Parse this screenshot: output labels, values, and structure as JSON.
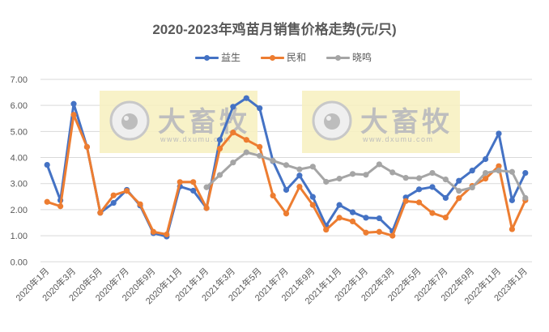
{
  "chart_data": {
    "type": "line",
    "title": "2020-2023年鸡苗月销售价格走势(元/只)",
    "xlabel": "",
    "ylabel": "",
    "ylim": [
      0,
      7
    ],
    "yticks": [
      "0.00",
      "1.00",
      "2.00",
      "3.00",
      "4.00",
      "5.00",
      "6.00",
      "7.00"
    ],
    "grid": true,
    "legend_position": "top",
    "categories": [
      "2020年1月",
      "2020年2月",
      "2020年3月",
      "2020年4月",
      "2020年5月",
      "2020年6月",
      "2020年7月",
      "2020年8月",
      "2020年9月",
      "2020年10月",
      "2020年11月",
      "2020年12月",
      "2021年1月",
      "2021年2月",
      "2021年3月",
      "2021年4月",
      "2021年5月",
      "2021年6月",
      "2021年7月",
      "2021年8月",
      "2021年9月",
      "2021年10月",
      "2021年11月",
      "2021年12月",
      "2022年1月",
      "2022年2月",
      "2022年3月",
      "2022年4月",
      "2022年5月",
      "2022年6月",
      "2022年7月",
      "2022年8月",
      "2022年9月",
      "2022年10月",
      "2022年11月",
      "2022年12月",
      "2023年1月"
    ],
    "xtick_labels": [
      "2020年1月",
      "2020年3月",
      "2020年5月",
      "2020年7月",
      "2020年9月",
      "2020年11月",
      "2021年1月",
      "2021年3月",
      "2021年5月",
      "2021年7月",
      "2021年9月",
      "2021年11月",
      "2022年1月",
      "2022年3月",
      "2022年5月",
      "2022年7月",
      "2022年9月",
      "2022年11月",
      "2023年1月"
    ],
    "series": [
      {
        "name": "益生",
        "color": "#4472C4",
        "values": [
          3.72,
          2.36,
          6.06,
          4.41,
          1.88,
          2.26,
          2.76,
          2.16,
          1.1,
          0.97,
          2.89,
          2.73,
          2.06,
          4.68,
          5.95,
          6.28,
          5.89,
          3.86,
          2.76,
          3.31,
          2.49,
          1.38,
          2.18,
          1.9,
          1.69,
          1.67,
          1.18,
          2.47,
          2.78,
          2.87,
          2.45,
          3.11,
          3.5,
          3.94,
          4.92,
          2.36,
          3.41
        ]
      },
      {
        "name": "民和",
        "color": "#ED7D31",
        "values": [
          2.3,
          2.13,
          5.64,
          4.41,
          1.88,
          2.55,
          2.72,
          2.21,
          1.15,
          1.05,
          3.06,
          3.06,
          2.06,
          4.34,
          4.96,
          4.68,
          4.41,
          2.54,
          1.85,
          2.88,
          2.18,
          1.23,
          1.69,
          1.55,
          1.12,
          1.15,
          1.0,
          2.33,
          2.28,
          1.87,
          1.7,
          2.44,
          2.91,
          3.19,
          3.67,
          1.25,
          2.36
        ]
      },
      {
        "name": "晓鸣",
        "color": "#A5A5A5",
        "values": [
          null,
          null,
          null,
          null,
          null,
          null,
          null,
          null,
          null,
          null,
          null,
          null,
          2.86,
          3.33,
          3.81,
          4.2,
          4.07,
          3.88,
          3.71,
          3.55,
          3.65,
          3.07,
          3.19,
          3.37,
          3.34,
          3.74,
          3.43,
          3.22,
          3.21,
          3.41,
          3.16,
          2.72,
          2.85,
          3.41,
          3.5,
          3.45,
          2.45
        ]
      }
    ]
  },
  "legend": {
    "items": [
      {
        "label": "益生",
        "color": "#4472C4"
      },
      {
        "label": "民和",
        "color": "#ED7D31"
      },
      {
        "label": "晓鸣",
        "color": "#A5A5A5"
      }
    ]
  },
  "watermark": {
    "brand": "大畜牧",
    "url": "www.dxumu.com",
    "bg_color": "#F7F0BE"
  }
}
